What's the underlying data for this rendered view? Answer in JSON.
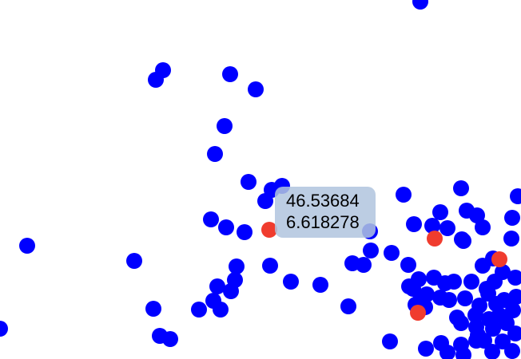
{
  "markers": {
    "colors": {
      "default": "#0000ff",
      "highlighted": "#f03c2e"
    }
  },
  "tooltip": {
    "latitude": "46.53684",
    "longitude": "6.618278"
  }
}
